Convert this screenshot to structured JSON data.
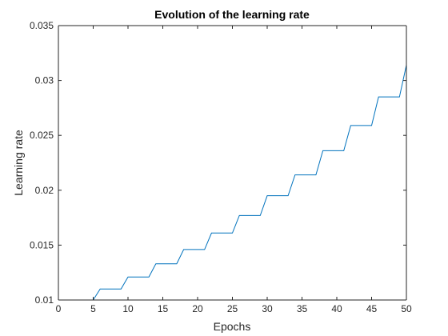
{
  "chart_data": {
    "type": "line",
    "title": "Evolution of the learning rate",
    "xlabel": "Epochs",
    "ylabel": "Learning rate",
    "xlim": [
      0,
      50
    ],
    "ylim": [
      0.01,
      0.035
    ],
    "xticks": [
      0,
      5,
      10,
      15,
      20,
      25,
      30,
      35,
      40,
      45,
      50
    ],
    "xtick_labels": [
      "0",
      "5",
      "10",
      "15",
      "20",
      "25",
      "30",
      "35",
      "40",
      "45",
      "50"
    ],
    "yticks": [
      0.01,
      0.015,
      0.02,
      0.025,
      0.03,
      0.035
    ],
    "ytick_labels": [
      "0.01",
      "0.015",
      "0.02",
      "0.025",
      "0.03",
      "0.035"
    ],
    "grid": false,
    "box": true,
    "line_color": "#0072BD",
    "series": [
      {
        "x": [
          1,
          5,
          6,
          9,
          10,
          13,
          14,
          17,
          18,
          21,
          22,
          25,
          26,
          29,
          30,
          33,
          34,
          37,
          38,
          41,
          42,
          45,
          46,
          49,
          50
        ],
        "y": [
          0.01,
          0.01,
          0.011,
          0.011,
          0.0121,
          0.0121,
          0.0133,
          0.0133,
          0.0146,
          0.0146,
          0.0161,
          0.0161,
          0.0177,
          0.0177,
          0.0195,
          0.0195,
          0.0214,
          0.0214,
          0.0236,
          0.0236,
          0.0259,
          0.0259,
          0.0285,
          0.0285,
          0.0314
        ]
      }
    ]
  }
}
